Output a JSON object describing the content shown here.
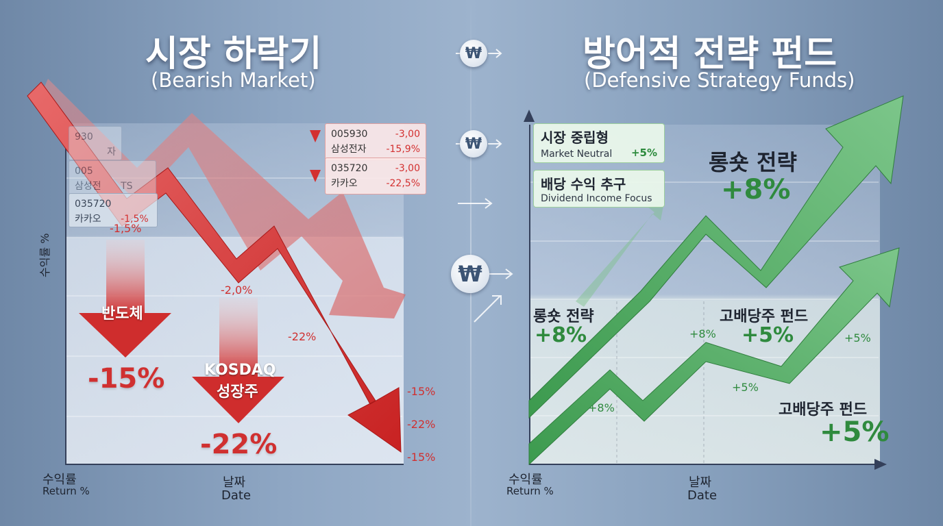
{
  "left": {
    "title_ko": "시장 하락기",
    "title_en": "(Bearish Market)",
    "tickers": [
      {
        "code": "005930",
        "name": "삼성전자",
        "change": "-3,00",
        "pct": "-15,9%"
      },
      {
        "code": "035720",
        "name": "카카오",
        "change": "-3,00",
        "pct": "-22,5%"
      }
    ],
    "faded_tickers": [
      {
        "code": "930",
        "name": "자"
      },
      {
        "code": "005",
        "name": "삼성전",
        "extra": "TS"
      },
      {
        "code": "035720",
        "name": "카카오",
        "extra": "-1,5%"
      }
    ],
    "sector_arrows": [
      {
        "label": "반도체",
        "value": "-15%"
      },
      {
        "label_top": "KOSDAQ",
        "label": "성장주",
        "value": "-22%"
      }
    ],
    "point_labels": [
      "-1,5%",
      "-2,0%",
      "-22%",
      "-15%",
      "-22%",
      "-15%"
    ],
    "y_axis_label": "수익률 %",
    "x_axis": {
      "ko": "날짜",
      "en": "Date"
    },
    "y_axis_corner": {
      "ko": "수익률",
      "en": "Return %"
    }
  },
  "right": {
    "title_ko": "방어적 전략 펀드",
    "title_en": "(Defensive Strategy Funds)",
    "chips": [
      {
        "ko": "시장 중립형",
        "en": "Market Neutral",
        "pct": "+5%"
      },
      {
        "ko": "배당 수익 추구",
        "en": "Dividend Income Focus"
      }
    ],
    "labels": {
      "longshort_top": "롱숏 전략",
      "longshort_top_val": "+8%",
      "longshort_mid": "롱숏 전략",
      "longshort_mid_val": "+8%",
      "dividend_mid": "고배당주 펀드",
      "dividend_mid_val": "+5%",
      "dividend_bottom": "고배당주 펀드",
      "dividend_bottom_val": "+5%",
      "small_8a": "+8%",
      "small_8b": "+8%",
      "small_5a": "+5%",
      "small_5b": "+5%"
    },
    "x_axis": {
      "ko": "날짜",
      "en": "Date"
    },
    "y_axis_corner": {
      "ko": "수익률",
      "en": "Return %"
    }
  },
  "coin_symbol": "₩",
  "chart_data": [
    {
      "type": "line",
      "title": "시장 하락기 (Bearish Market)",
      "xlabel": "날짜 Date",
      "ylabel": "수익률 Return %",
      "series": [
        {
          "name": "반도체",
          "values": [
            0,
            -1.5,
            -2.0,
            -15
          ]
        },
        {
          "name": "KOSDAQ 성장주",
          "values": [
            0,
            -2.0,
            -22
          ]
        }
      ]
    },
    {
      "type": "line",
      "title": "방어적 전략 펀드 (Defensive Strategy Funds)",
      "xlabel": "날짜 Date",
      "ylabel": "수익률 Return %",
      "series": [
        {
          "name": "롱숏 전략",
          "values": [
            0,
            8
          ]
        },
        {
          "name": "고배당주 펀드",
          "values": [
            0,
            5
          ]
        },
        {
          "name": "시장 중립형",
          "values": [
            0,
            5
          ]
        }
      ]
    }
  ],
  "colors": {
    "red": "#d33030",
    "green": "#3c9a4e",
    "navy": "#34405a"
  }
}
